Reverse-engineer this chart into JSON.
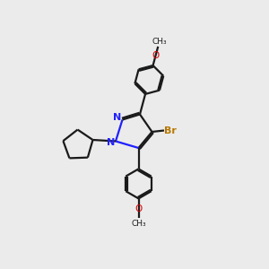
{
  "bg_color": "#ebebeb",
  "bond_color": "#1a1a1a",
  "n_color": "#2020ff",
  "br_color": "#b87800",
  "o_color": "#dd0000",
  "line_width": 1.6,
  "dbo": 0.055,
  "xlim": [
    0,
    10
  ],
  "ylim": [
    0,
    10
  ]
}
